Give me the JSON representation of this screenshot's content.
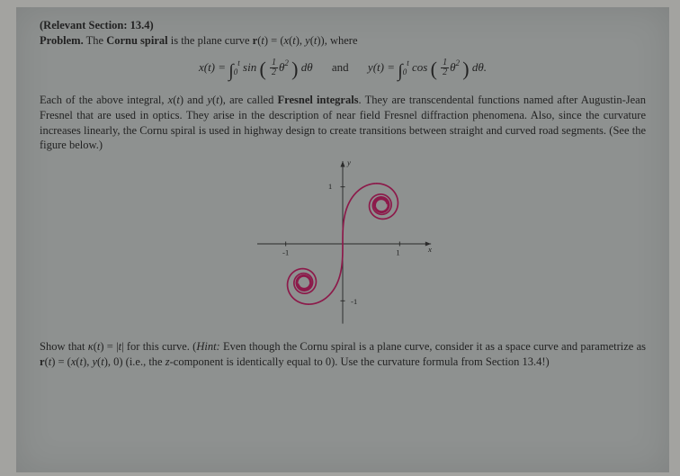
{
  "header": {
    "section_ref": "(Relevant Section: 13.4)",
    "problem_label": "Problem.",
    "problem_line": " The Cornu spiral is the plane curve r(t) = (x(t), y(t)), where"
  },
  "equations": {
    "xoft": "x(t) = ",
    "int_from": "0",
    "int_to": "t",
    "sin": "sin",
    "cos": "cos",
    "half_num": "1",
    "half_den": "2",
    "theta_sq": "θ",
    "sq": "2",
    "dtheta": " dθ",
    "and": "and",
    "yoft": "y(t) = ",
    "period": "."
  },
  "body": {
    "para": "Each of the above integral, x(t) and y(t), are called Fresnel integrals. They are transcendental functions named after Augustin-Jean Fresnel that are used in optics. They arise in the description of near field Fresnel diffraction phenomena. Also, since the curvature increases linearly, the Cornu spiral is used in highway design to create transitions between straight and curved road segments. (See the figure below.)"
  },
  "figure": {
    "axis_labels": {
      "x": "x",
      "y": "y",
      "one": "1",
      "neg_one": "-1"
    },
    "colors": {
      "curve": "#8c1a4a",
      "axis": "#2a2a2a",
      "bg": "#8e9190"
    },
    "stroke_width": 1.6
  },
  "footer": {
    "show_text_1": "Show that κ(t) = |t| for this curve. (",
    "hint_label": "Hint:",
    "show_text_2": " Even though the Cornu spiral is a plane curve, consider it as a space curve and parametrize as r(t) = (x(t), y(t), 0) (i.e., the z-component is identically equal to 0). Use the curvature formula from Section 13.4!)"
  }
}
